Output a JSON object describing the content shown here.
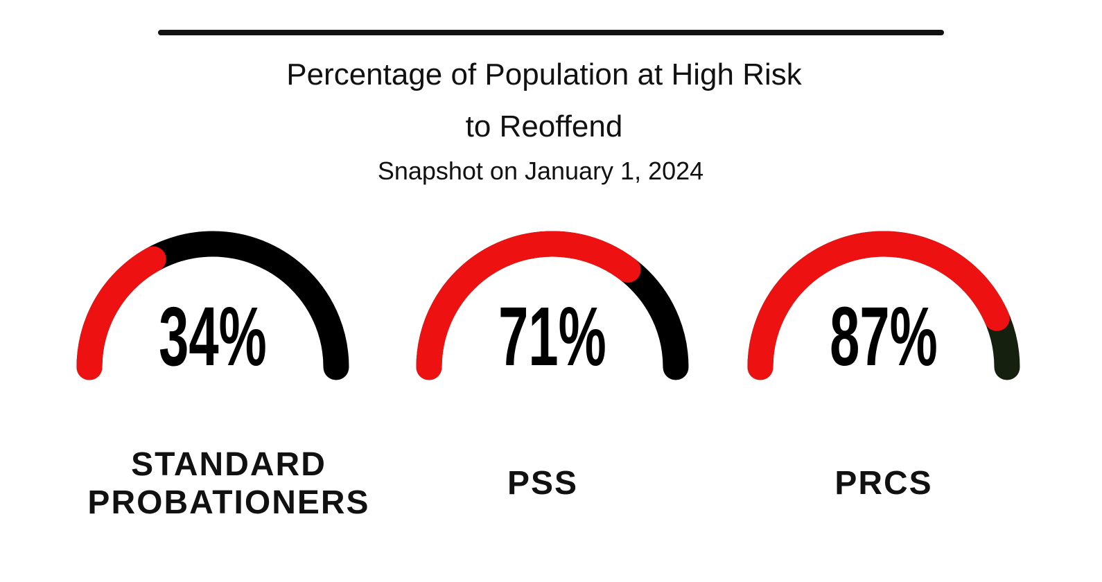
{
  "chart_data": {
    "type": "gauge",
    "title": "Percentage of Population at High Risk to Reoffend",
    "subtitle": "Snapshot on January 1, 2024",
    "categories": [
      "STANDARD PROBATIONERS",
      "PSS",
      "PRCS"
    ],
    "values": [
      34,
      71,
      87
    ],
    "value_labels": [
      "34%",
      "71%",
      "87%"
    ],
    "color": "#ee1111",
    "track_colors": [
      "#000000",
      "#000000",
      "#16200f"
    ],
    "ylim": [
      0,
      100
    ]
  }
}
